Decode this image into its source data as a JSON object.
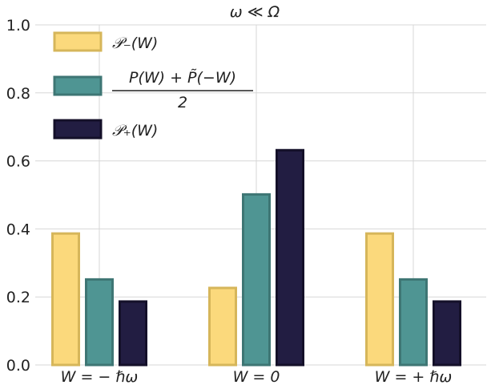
{
  "chart_data": {
    "type": "bar",
    "title": "ω ≪ Ω",
    "categories": [
      "W = − ℏω",
      "W = 0",
      "W = + ℏω"
    ],
    "series": [
      {
        "name": "𝒫₋(W)",
        "color": "#fbd97c",
        "edge": "#d6b65a",
        "values": [
          0.39,
          0.23,
          0.39
        ]
      },
      {
        "name": "P(W) + P̃(−W)",
        "name_denominator": "2",
        "color": "#4f9593",
        "edge": "#3e7674",
        "values": [
          0.255,
          0.505,
          0.255
        ]
      },
      {
        "name": "𝒫₊(W)",
        "color": "#221d42",
        "edge": "#141029",
        "values": [
          0.19,
          0.635,
          0.19
        ]
      }
    ],
    "xlabel": "",
    "ylabel": "",
    "ylim": [
      0,
      1.0
    ],
    "yticks": [
      "0.0",
      "0.2",
      "0.4",
      "0.6",
      "0.8",
      "1.0"
    ],
    "ytick_values": [
      0,
      0.2,
      0.4,
      0.6,
      0.8,
      1.0
    ],
    "grid": true,
    "legend_position": "top-left"
  }
}
